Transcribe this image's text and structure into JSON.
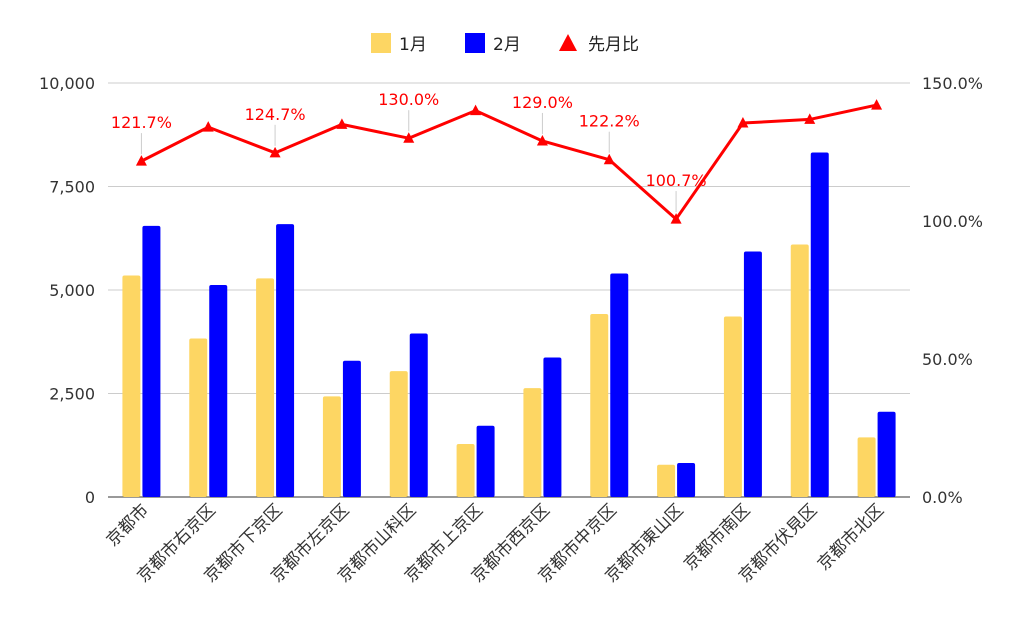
{
  "chart_data": {
    "type": "bar",
    "categories": [
      "京都市",
      "京都市右京区",
      "京都市下京区",
      "京都市左京区",
      "京都市山科区",
      "京都市上京区",
      "京都市西京区",
      "京都市中京区",
      "京都市東山区",
      "京都市南区",
      "京都市伏見区",
      "京都市北区"
    ],
    "series": [
      {
        "name": "1月",
        "type": "bar",
        "axis": "left",
        "color": "#FDD663",
        "values": [
          5350,
          3830,
          5280,
          2430,
          3040,
          1280,
          2630,
          4420,
          780,
          4360,
          6100,
          1440
        ]
      },
      {
        "name": "2月",
        "type": "bar",
        "axis": "left",
        "color": "#0000FF",
        "values": [
          6550,
          5120,
          6590,
          3290,
          3950,
          1720,
          3370,
          5400,
          820,
          5930,
          8320,
          2060
        ]
      },
      {
        "name": "先月比",
        "type": "line",
        "axis": "right",
        "color": "#FF0000",
        "marker": "triangle",
        "values": [
          121.7,
          134.0,
          124.7,
          135.0,
          130.0,
          140.0,
          129.0,
          122.2,
          100.7,
          135.5,
          136.8,
          142.0
        ]
      }
    ],
    "data_labels": [
      {
        "index": 0,
        "text": "121.7%"
      },
      {
        "index": 2,
        "text": "124.7%"
      },
      {
        "index": 4,
        "text": "130.0%"
      },
      {
        "index": 6,
        "text": "129.0%"
      },
      {
        "index": 7,
        "text": "122.2%"
      },
      {
        "index": 8,
        "text": "100.7%"
      }
    ],
    "left_axis": {
      "ylim": [
        0,
        10000
      ],
      "ticks": [
        0,
        2500,
        5000,
        7500,
        10000
      ],
      "tick_labels": [
        "0",
        "2,500",
        "5,000",
        "7,500",
        "10,000"
      ]
    },
    "right_axis": {
      "ylim": [
        0,
        150
      ],
      "ticks": [
        0,
        50,
        100,
        150
      ],
      "tick_labels": [
        "0.0%",
        "50.0%",
        "100.0%",
        "150.0%"
      ]
    },
    "legend": {
      "position": "top",
      "entries": [
        "1月",
        "2月",
        "先月比"
      ]
    },
    "grid": true
  }
}
